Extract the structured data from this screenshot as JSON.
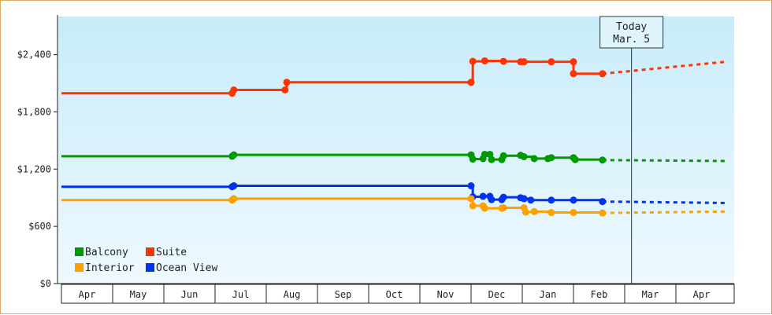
{
  "chart_data": {
    "type": "line",
    "y_ticks": [
      "$0",
      "$600",
      "$1,200",
      "$1,800",
      "$2,400"
    ],
    "y_tick_values": [
      0,
      600,
      1200,
      1800,
      2400
    ],
    "ylim": [
      0,
      2800
    ],
    "months": [
      "Apr",
      "May",
      "Jun",
      "Jul",
      "Aug",
      "Sep",
      "Oct",
      "Nov",
      "Dec",
      "Jan",
      "Feb",
      "Mar",
      "Apr"
    ],
    "today": {
      "line1": "Today",
      "line2": "Mar. 5",
      "date": "Mar 5"
    },
    "legend_position": "bottom-left",
    "grid": false,
    "series": [
      {
        "name": "Suite",
        "color": "#ff3300",
        "points": [
          [
            "Apr 1",
            1995
          ],
          [
            "Jul 11",
            1995
          ],
          [
            "Jul 12",
            2030
          ],
          [
            "Aug 12",
            2030
          ],
          [
            "Aug 13",
            2110
          ],
          [
            "Dec 1",
            2110
          ],
          [
            "Dec 2",
            2330
          ],
          [
            "Dec 9",
            2335
          ],
          [
            "Dec 20",
            2330
          ],
          [
            "Dec 30",
            2325
          ],
          [
            "Jan 2",
            2325
          ],
          [
            "Jan 18",
            2325
          ],
          [
            "Jan 31",
            2325
          ],
          [
            "Feb 1",
            2200
          ],
          [
            "Feb 18",
            2200
          ]
        ],
        "projection": [
          [
            "Feb 18",
            2200
          ],
          [
            "Apr 30",
            2325
          ]
        ]
      },
      {
        "name": "Balcony",
        "color": "#009900",
        "points": [
          [
            "Apr 1",
            1335
          ],
          [
            "Jul 11",
            1335
          ],
          [
            "Jul 12",
            1350
          ],
          [
            "Dec 1",
            1350
          ],
          [
            "Dec 2",
            1305
          ],
          [
            "Dec 8",
            1310
          ],
          [
            "Dec 9",
            1355
          ],
          [
            "Dec 12",
            1355
          ],
          [
            "Dec 13",
            1300
          ],
          [
            "Dec 19",
            1300
          ],
          [
            "Dec 20",
            1340
          ],
          [
            "Dec 30",
            1345
          ],
          [
            "Jan 2",
            1330
          ],
          [
            "Jan 8",
            1310
          ],
          [
            "Jan 16",
            1310
          ],
          [
            "Jan 18",
            1320
          ],
          [
            "Jan 31",
            1320
          ],
          [
            "Feb 2",
            1300
          ],
          [
            "Feb 18",
            1295
          ]
        ],
        "projection": [
          [
            "Feb 18",
            1295
          ],
          [
            "Apr 30",
            1285
          ]
        ]
      },
      {
        "name": "Ocean View",
        "color": "#0033ee",
        "points": [
          [
            "Apr 1",
            1015
          ],
          [
            "Jul 11",
            1015
          ],
          [
            "Jul 12",
            1025
          ],
          [
            "Dec 1",
            1025
          ],
          [
            "Dec 2",
            910
          ],
          [
            "Dec 8",
            915
          ],
          [
            "Dec 12",
            915
          ],
          [
            "Dec 13",
            880
          ],
          [
            "Dec 19",
            880
          ],
          [
            "Dec 20",
            905
          ],
          [
            "Dec 30",
            900
          ],
          [
            "Jan 2",
            890
          ],
          [
            "Jan 6",
            875
          ],
          [
            "Jan 18",
            875
          ],
          [
            "Jan 31",
            875
          ],
          [
            "Feb 18",
            860
          ]
        ],
        "projection": [
          [
            "Feb 18",
            860
          ],
          [
            "Apr 30",
            845
          ]
        ]
      },
      {
        "name": "Interior",
        "color": "#ffa000",
        "points": [
          [
            "Apr 1",
            875
          ],
          [
            "Jul 11",
            875
          ],
          [
            "Jul 12",
            890
          ],
          [
            "Dec 1",
            890
          ],
          [
            "Dec 2",
            815
          ],
          [
            "Dec 8",
            815
          ],
          [
            "Dec 9",
            790
          ],
          [
            "Dec 19",
            790
          ],
          [
            "Dec 20",
            795
          ],
          [
            "Jan 2",
            795
          ],
          [
            "Jan 3",
            750
          ],
          [
            "Jan 8",
            755
          ],
          [
            "Jan 18",
            745
          ],
          [
            "Jan 31",
            745
          ],
          [
            "Feb 18",
            740
          ]
        ],
        "projection": [
          [
            "Feb 18",
            740
          ],
          [
            "Apr 30",
            755
          ]
        ]
      }
    ],
    "legend": [
      {
        "name": "Balcony",
        "color": "#009900"
      },
      {
        "name": "Suite",
        "color": "#ff3300"
      },
      {
        "name": "Interior",
        "color": "#ffa000"
      },
      {
        "name": "Ocean View",
        "color": "#0033ee"
      }
    ]
  }
}
